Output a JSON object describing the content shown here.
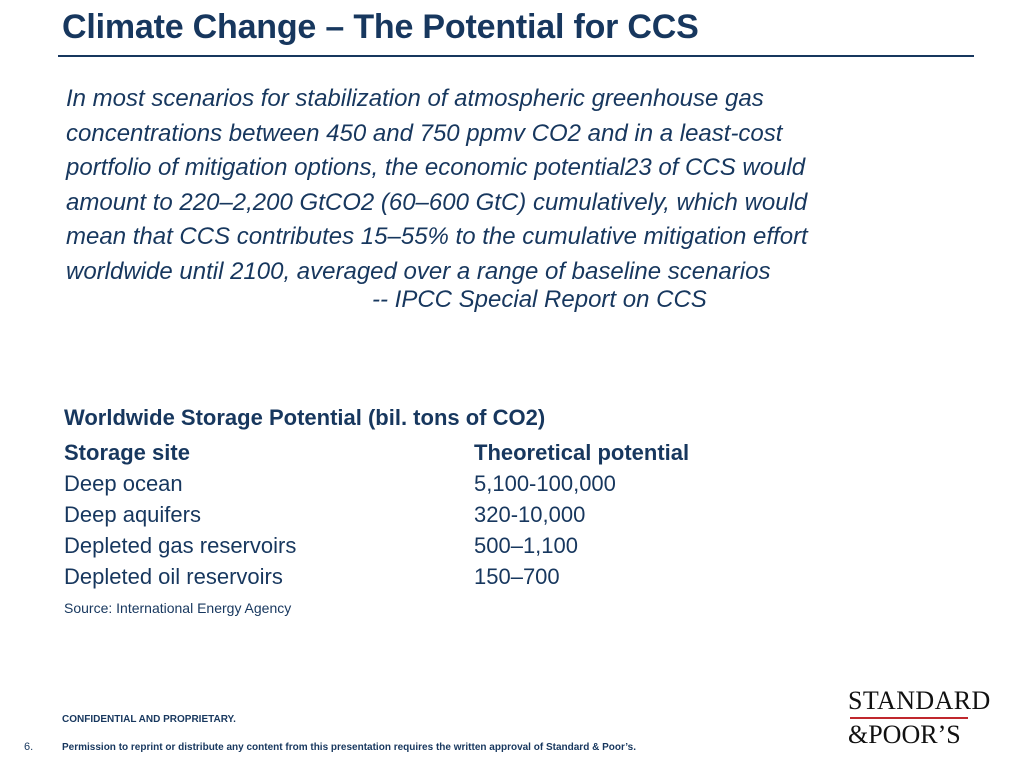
{
  "slide": {
    "title": "Climate Change – The Potential for CCS",
    "quote_lines": [
      "In most scenarios for stabilization of atmospheric greenhouse gas",
      "concentrations between 450 and 750 ppmv CO2 and in a least-cost",
      "portfolio of mitigation options, the economic potential23 of CCS would",
      "amount to 220–2,200 GtCO2 (60–600 GtC) cumulatively, which would",
      "mean that CCS contributes 15–55% to the cumulative mitigation effort",
      "worldwide until 2100, averaged over a range of baseline scenarios"
    ],
    "attribution": "-- IPCC Special Report on CCS",
    "table": {
      "title": "Worldwide Storage Potential (bil. tons of CO2)",
      "headers": [
        "Storage site",
        "Theoretical potential"
      ],
      "rows": [
        [
          "Deep ocean",
          "5,100-100,000"
        ],
        [
          "Deep aquifers",
          "320-10,000"
        ],
        [
          "Depleted gas reservoirs",
          "500–1,100"
        ],
        [
          "Depleted oil reservoirs",
          "150–700"
        ]
      ]
    },
    "source": "Source: International Energy Agency",
    "footer": {
      "confidential": "CONFIDENTIAL AND PROPRIETARY.",
      "page_number": "6.",
      "permission": "Permission to reprint or distribute any content from this presentation requires the written approval of Standard & Poor’s."
    },
    "logo": {
      "line1": "STANDARD",
      "line2": "&POOR’S"
    },
    "colors": {
      "primary": "#17375e",
      "logo_rule": "#c0272d",
      "logo_text": "#111111"
    }
  }
}
